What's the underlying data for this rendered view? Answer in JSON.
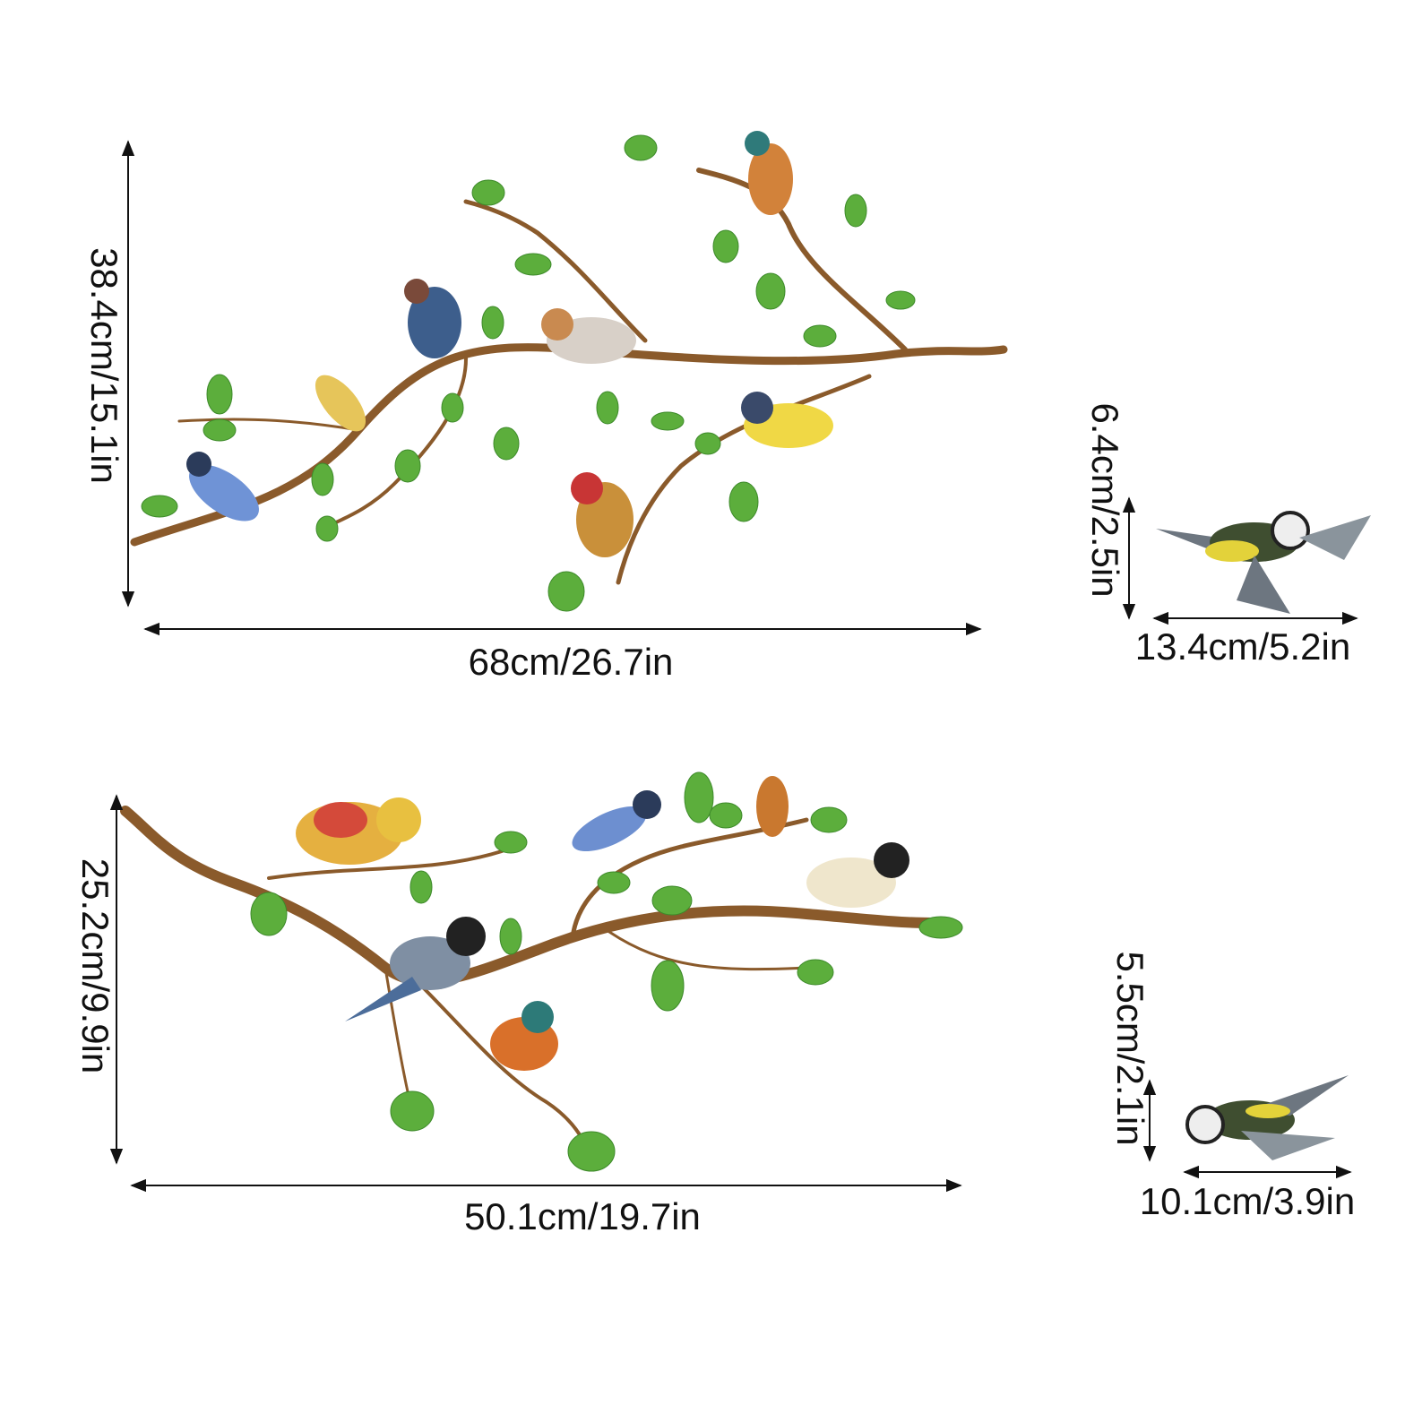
{
  "decals": [
    {
      "height": "38.4cm/15.1in",
      "width": "68cm/26.7in"
    },
    {
      "height": "6.4cm/2.5in",
      "width": "13.4cm/5.2in"
    },
    {
      "height": "25.2cm/9.9in",
      "width": "50.1cm/19.7in"
    },
    {
      "height": "5.5cm/2.1in",
      "width": "10.1cm/3.9in"
    }
  ]
}
